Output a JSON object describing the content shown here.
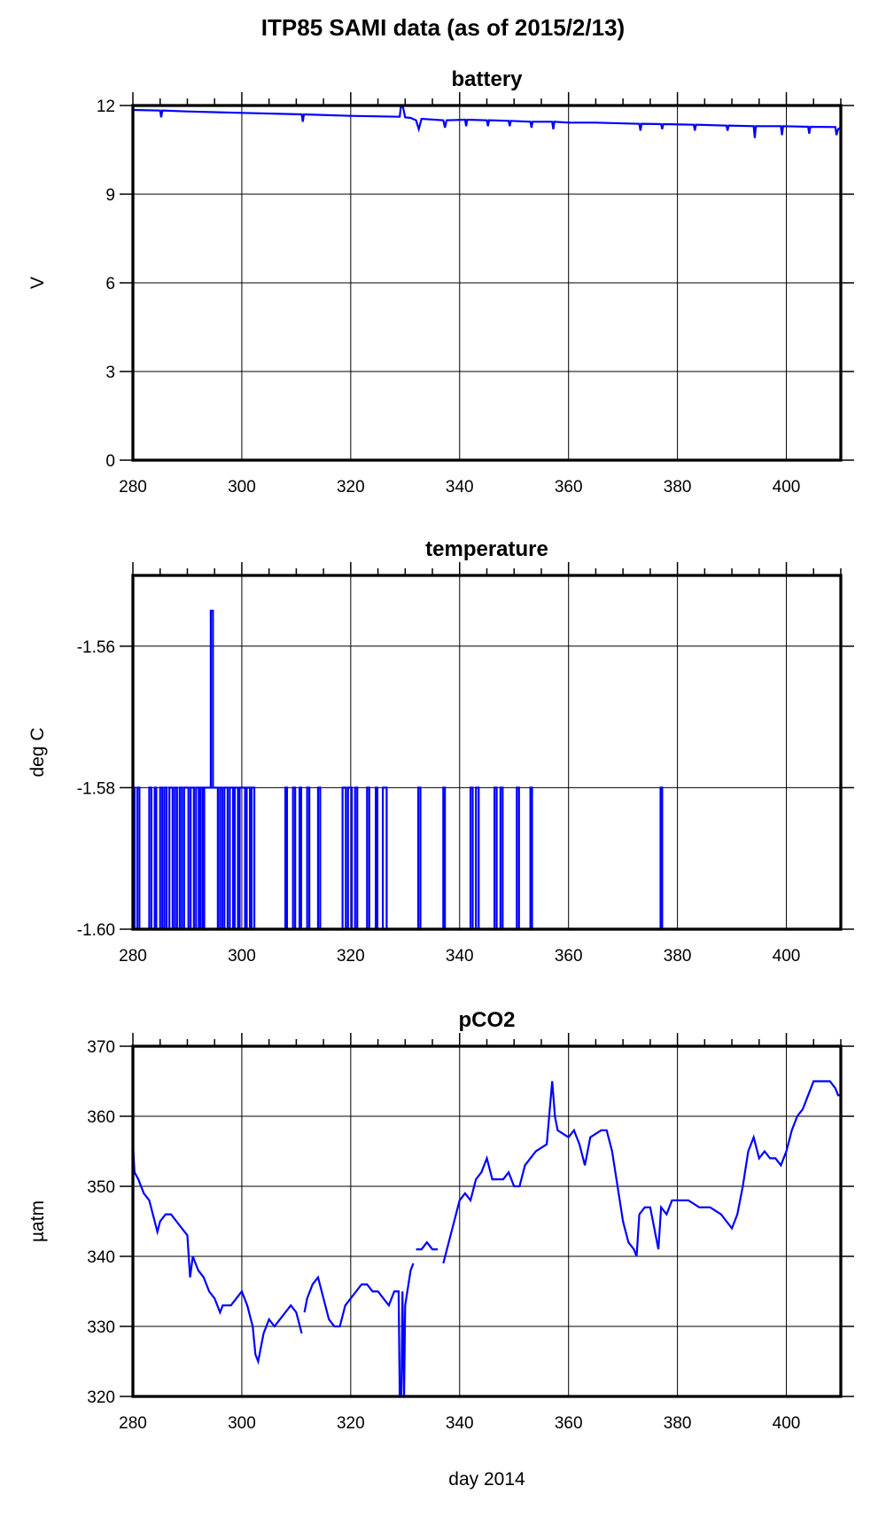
{
  "title": "ITP85 SAMI data (as of 2015/2/13)",
  "chart_data": [
    {
      "type": "line",
      "title": "battery",
      "xlabel": "",
      "ylabel": "V",
      "xlim": [
        280,
        410
      ],
      "ylim": [
        0,
        12
      ],
      "xticks": [
        280,
        300,
        320,
        340,
        360,
        380,
        400
      ],
      "yticks": [
        0,
        3,
        6,
        9,
        12
      ],
      "grid": true,
      "color": "#0000ff",
      "series": [
        {
          "x": [
            280,
            285,
            285.2,
            285.4,
            290,
            300,
            311,
            311.2,
            311.4,
            320,
            329,
            329.2,
            329.6,
            330,
            331,
            332,
            332.5,
            333,
            337,
            337.3,
            337.6,
            341,
            341.2,
            341.4,
            345,
            345.2,
            345.4,
            349,
            349.2,
            349.4,
            353,
            353.2,
            353.4,
            357,
            357.2,
            357.4,
            360,
            365,
            373,
            373.2,
            373.4,
            377,
            377.2,
            377.4,
            383,
            383.2,
            383.4,
            389,
            389.2,
            389.4,
            394,
            394.2,
            394.4,
            399,
            399.2,
            399.4,
            404,
            404.2,
            404.4,
            409,
            409.2,
            409.5,
            410
          ],
          "y": [
            11.85,
            11.83,
            11.6,
            11.83,
            11.8,
            11.75,
            11.7,
            11.45,
            11.7,
            11.65,
            11.62,
            11.95,
            11.95,
            11.6,
            11.58,
            11.5,
            11.2,
            11.55,
            11.5,
            11.25,
            11.5,
            11.52,
            11.3,
            11.52,
            11.5,
            11.3,
            11.5,
            11.48,
            11.3,
            11.48,
            11.45,
            11.25,
            11.45,
            11.45,
            11.2,
            11.45,
            11.42,
            11.42,
            11.38,
            11.15,
            11.38,
            11.37,
            11.2,
            11.37,
            11.35,
            11.15,
            11.35,
            11.32,
            11.15,
            11.32,
            11.3,
            10.9,
            11.3,
            11.3,
            11.0,
            11.3,
            11.28,
            11.05,
            11.28,
            11.27,
            11.0,
            11.2,
            11.25
          ]
        }
      ]
    },
    {
      "type": "line",
      "title": "temperature",
      "xlabel": "",
      "ylabel": "deg C",
      "xlim": [
        280,
        410
      ],
      "ylim": [
        -1.6,
        -1.55
      ],
      "xticks": [
        280,
        300,
        320,
        340,
        360,
        380,
        400
      ],
      "yticks": [
        -1.6,
        -1.58,
        -1.56
      ],
      "ytick_labels": [
        "-1.60",
        "-1.58",
        "-1.56"
      ],
      "grid": true,
      "color": "#0000ff",
      "baseline": -1.6,
      "level": -1.58,
      "peak": {
        "x": 294.5,
        "y": -1.555
      },
      "intervals_at_level": [
        [
          280,
          280.3
        ],
        [
          280.8,
          281.2
        ],
        [
          283,
          283.4
        ],
        [
          284,
          284.3
        ],
        [
          285,
          285.4
        ],
        [
          285.8,
          286.2
        ],
        [
          286.7,
          287.3
        ],
        [
          287.7,
          288.1
        ],
        [
          288.6,
          289
        ],
        [
          289.4,
          290.2
        ],
        [
          290.6,
          291.2
        ],
        [
          291.6,
          292.1
        ],
        [
          292.4,
          292.8
        ],
        [
          293.1,
          295.6
        ],
        [
          296,
          296.4
        ],
        [
          296.8,
          297.4
        ],
        [
          297.8,
          298.4
        ],
        [
          298.7,
          299.3
        ],
        [
          299.6,
          300.6
        ],
        [
          300.9,
          301.5
        ],
        [
          301.8,
          302.3
        ],
        [
          308,
          308.3
        ],
        [
          309.4,
          309.8
        ],
        [
          310.6,
          310.9
        ],
        [
          312,
          312.4
        ],
        [
          314,
          314.4
        ],
        [
          318.5,
          319.1
        ],
        [
          319.5,
          320.2
        ],
        [
          320.8,
          321.2
        ],
        [
          323,
          323.4
        ],
        [
          324.6,
          324.9
        ],
        [
          325.9,
          326.6
        ],
        [
          332.4,
          332.8
        ],
        [
          337,
          337.3
        ],
        [
          342,
          342.4
        ],
        [
          343,
          343.5
        ],
        [
          346.4,
          346.8
        ],
        [
          347.5,
          347.9
        ],
        [
          350.5,
          350.9
        ],
        [
          353,
          353.3
        ],
        [
          376.9,
          377.2
        ]
      ]
    },
    {
      "type": "line",
      "title": "pCO2",
      "xlabel": "day 2014",
      "ylabel": "µatm",
      "xlim": [
        280,
        410
      ],
      "ylim": [
        320,
        370
      ],
      "xticks": [
        280,
        300,
        320,
        340,
        360,
        380,
        400
      ],
      "yticks": [
        320,
        330,
        340,
        350,
        360,
        370
      ],
      "grid": true,
      "color": "#0000ff",
      "series": [
        {
          "x": [
            280,
            280.3,
            281,
            282,
            283,
            284,
            284.5,
            285,
            286,
            287,
            288,
            289,
            290,
            290.5,
            291,
            292,
            293,
            294,
            295,
            296,
            296.5,
            298,
            299,
            300,
            301,
            302,
            302.5,
            303,
            304,
            305,
            306,
            307,
            308,
            309,
            310,
            311
          ],
          "y": [
            356,
            352,
            351,
            349,
            348,
            345,
            343.5,
            345,
            346,
            346,
            345,
            344,
            343,
            337,
            340,
            338,
            337,
            335,
            334,
            332,
            333,
            333,
            334,
            335,
            333,
            330,
            326,
            325,
            329,
            331,
            330,
            331,
            332,
            333,
            332,
            329
          ]
        },
        {
          "x": [
            311.5,
            312,
            313,
            314,
            315,
            316,
            317,
            318,
            319,
            320,
            321,
            322,
            323,
            324,
            325,
            326,
            327,
            328,
            328.8,
            329,
            329.3,
            329.5,
            329.8,
            330,
            331,
            331.5
          ],
          "y": [
            332,
            334,
            336,
            337,
            334,
            331,
            330,
            330,
            333,
            334,
            335,
            336,
            336,
            335,
            335,
            334,
            333,
            335,
            335,
            320,
            320,
            335,
            320,
            333,
            338,
            339
          ]
        },
        {
          "x": [
            332,
            333,
            334,
            335,
            336
          ],
          "y": [
            341,
            341,
            342,
            341,
            341
          ]
        },
        {
          "x": [
            337,
            338,
            339,
            340,
            341,
            342,
            343,
            344,
            345,
            346,
            348,
            349,
            350,
            351,
            352,
            354,
            356,
            357,
            357.5,
            358,
            360,
            361,
            362,
            363,
            364,
            366,
            367,
            368,
            369,
            370,
            371,
            372,
            372.5,
            373,
            374,
            375,
            376,
            376.5,
            377,
            378,
            379,
            380,
            382,
            384,
            386,
            388,
            389,
            390,
            391,
            392,
            393,
            394,
            395,
            396,
            397,
            398,
            399,
            400,
            401,
            402,
            403,
            404,
            405,
            406,
            408,
            409,
            409.5,
            410
          ],
          "y": [
            339,
            342,
            345,
            348,
            349,
            348,
            351,
            352,
            354,
            351,
            351,
            352,
            350,
            350,
            353,
            355,
            356,
            365,
            360,
            358,
            357,
            358,
            356,
            353,
            357,
            358,
            358,
            355,
            350,
            345,
            342,
            341,
            340,
            346,
            347,
            347,
            343,
            341,
            347,
            346,
            348,
            348,
            348,
            347,
            347,
            346,
            345,
            344,
            346,
            350,
            355,
            357,
            354,
            355,
            354,
            354,
            353,
            355,
            358,
            360,
            361,
            363,
            365,
            365,
            365,
            364,
            363,
            363
          ]
        }
      ]
    }
  ]
}
